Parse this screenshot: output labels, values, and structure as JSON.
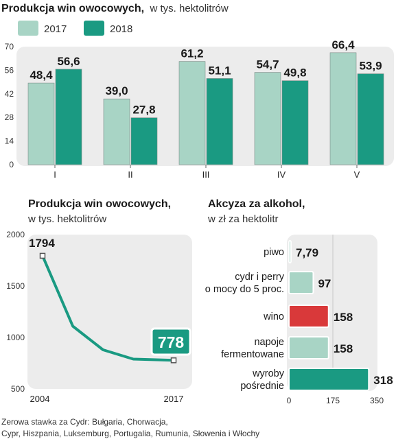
{
  "colors": {
    "c2017": "#a8d4c5",
    "c2018": "#1a9a82",
    "wino": "#d9393a",
    "line": "#1a9a82",
    "panel": "#ececec"
  },
  "chart_data": [
    {
      "type": "bar",
      "title": "Produkcja win owocowych,",
      "subtitle": "w tys. hektolitrów",
      "categories": [
        "I",
        "II",
        "III",
        "IV",
        "V"
      ],
      "series": [
        {
          "name": "2017",
          "values": [
            48.4,
            39.0,
            61.2,
            54.7,
            66.4
          ],
          "labels": [
            "48,4",
            "39,0",
            "61,2",
            "54,7",
            "66,4"
          ]
        },
        {
          "name": "2018",
          "values": [
            56.6,
            27.8,
            51.1,
            49.8,
            53.9
          ],
          "labels": [
            "56,6",
            "27,8",
            "51,1",
            "49,8",
            "53,9"
          ]
        }
      ],
      "ylim": [
        0,
        70
      ],
      "yticks": [
        "0",
        "14",
        "28",
        "42",
        "56",
        "70"
      ],
      "legend": "top-left"
    },
    {
      "type": "line",
      "title": "Produkcja win owocowych,",
      "subtitle": "w tys. hektolitrów",
      "x": [
        2004,
        2007,
        2010,
        2013,
        2017
      ],
      "y": [
        1794,
        1110,
        880,
        790,
        778
      ],
      "xtick_labels": [
        "2004",
        "2017"
      ],
      "yticks": [
        "500",
        "1000",
        "1500",
        "2000"
      ],
      "ylim": [
        500,
        2000
      ],
      "start_label": "1794",
      "end_label": "778"
    },
    {
      "type": "bar",
      "orientation": "horizontal",
      "title": "Akcyza za alkohol,",
      "subtitle": "w zł za hektolitr",
      "categories": [
        [
          "piwo"
        ],
        [
          "cydr i perry",
          "o mocy do 5 proc."
        ],
        [
          "wino"
        ],
        [
          "napoje",
          "fermentowane"
        ],
        [
          "wyroby",
          "pośrednie"
        ]
      ],
      "values": [
        7.79,
        97,
        158,
        158,
        318
      ],
      "labels": [
        "7,79",
        "97",
        "158",
        "158",
        "318"
      ],
      "xlim": [
        0,
        350
      ],
      "xticks": [
        "0",
        "175",
        "350"
      ]
    }
  ],
  "footnote": [
    "Zerowa stawka za Cydr:  Bułgaria, Chorwacja,",
    "Cypr, Hiszpania, Luksemburg, Portugalia, Rumunia, Słowenia i Włochy"
  ]
}
